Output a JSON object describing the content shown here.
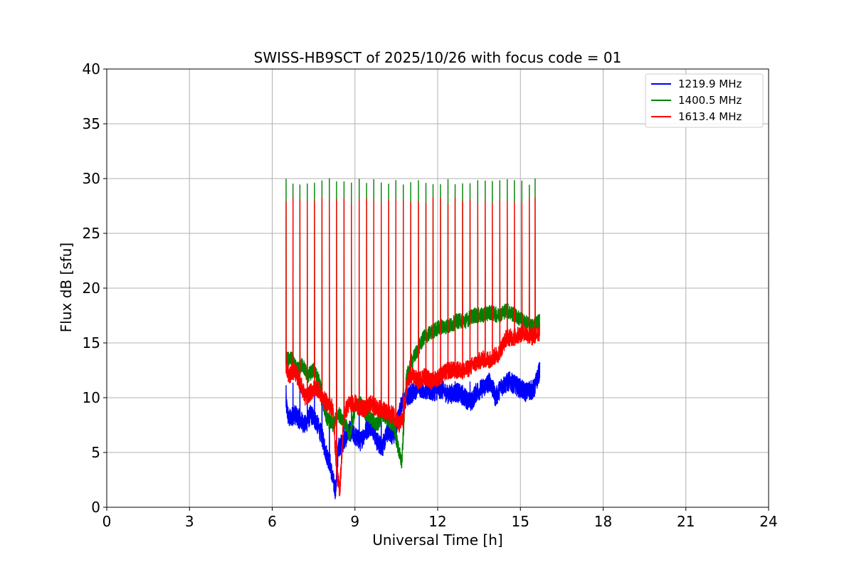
{
  "chart_data": {
    "type": "line",
    "title": "SWISS-HB9SCT of 2025/10/26 with focus code = 01",
    "xlabel": "Universal Time [h]",
    "ylabel": "Flux dB [sfu]",
    "xlim": [
      0,
      24
    ],
    "ylim": [
      0,
      40
    ],
    "xticks": [
      0,
      3,
      6,
      9,
      12,
      15,
      18,
      21,
      24
    ],
    "yticks": [
      0,
      5,
      10,
      15,
      20,
      25,
      30,
      35,
      40
    ],
    "grid": true,
    "legend_position": "top-right",
    "spike_times": [
      6.5,
      6.75,
      7.0,
      7.27,
      7.53,
      7.8,
      8.07,
      8.33,
      8.6,
      8.87,
      9.15,
      9.42,
      9.68,
      9.95,
      10.22,
      10.48,
      10.75,
      11.02,
      11.3,
      11.57,
      11.83,
      12.1,
      12.37,
      12.63,
      12.9,
      13.17,
      13.45,
      13.72,
      13.98,
      14.25,
      14.52,
      14.78,
      15.05,
      15.32,
      15.53
    ],
    "series": [
      {
        "name": "1219.9 MHz",
        "color": "#0000ff",
        "spike_peak": 11.5,
        "x": [
          6.5,
          6.6,
          6.8,
          7.0,
          7.2,
          7.4,
          7.6,
          7.8,
          7.95,
          8.1,
          8.2,
          8.3,
          8.4,
          8.6,
          8.8,
          9.0,
          9.2,
          9.4,
          9.6,
          9.8,
          10.0,
          10.2,
          10.4,
          10.6,
          10.7,
          10.9,
          11.1,
          11.3,
          11.5,
          11.8,
          12.1,
          12.4,
          12.7,
          13.0,
          13.2,
          13.4,
          13.7,
          13.9,
          14.1,
          14.3,
          14.6,
          14.9,
          15.2,
          15.5,
          15.7
        ],
        "y": [
          9.5,
          8.0,
          8.5,
          8.0,
          7.5,
          8.5,
          7.8,
          6.5,
          5.0,
          4.0,
          2.5,
          1.5,
          5.5,
          6.0,
          7.0,
          6.5,
          6.0,
          7.0,
          7.5,
          6.0,
          5.5,
          7.0,
          6.5,
          8.5,
          9.5,
          10.0,
          10.5,
          11.0,
          10.8,
          10.5,
          10.8,
          10.3,
          10.5,
          10.0,
          9.5,
          10.5,
          11.0,
          11.5,
          10.0,
          11.0,
          11.5,
          11.0,
          10.5,
          10.8,
          12.5
        ],
        "noise": 0.9
      },
      {
        "name": "1400.5 MHz",
        "color": "#008000",
        "spike_peak": 30.0,
        "x": [
          6.5,
          6.7,
          6.9,
          7.1,
          7.3,
          7.5,
          7.7,
          7.85,
          8.0,
          8.2,
          8.4,
          8.6,
          8.8,
          9.0,
          9.2,
          9.4,
          9.6,
          9.8,
          10.0,
          10.2,
          10.4,
          10.6,
          10.7,
          10.85,
          11.0,
          11.2,
          11.5,
          11.8,
          12.1,
          12.4,
          12.7,
          13.0,
          13.3,
          13.6,
          13.9,
          14.2,
          14.5,
          14.8,
          15.1,
          15.4,
          15.7
        ],
        "y": [
          13.5,
          13.5,
          12.5,
          13.0,
          12.0,
          12.5,
          11.5,
          9.5,
          8.0,
          7.5,
          8.5,
          8.0,
          6.5,
          9.0,
          9.5,
          8.5,
          8.0,
          7.5,
          8.5,
          8.0,
          7.5,
          5.0,
          4.0,
          11.5,
          13.0,
          14.0,
          15.5,
          16.0,
          16.5,
          16.5,
          17.0,
          17.0,
          17.5,
          17.5,
          17.8,
          17.5,
          18.0,
          17.5,
          17.0,
          16.5,
          17.0
        ],
        "noise": 0.7
      },
      {
        "name": "1613.4 MHz",
        "color": "#ff0000",
        "spike_peak": 28.3,
        "x": [
          6.5,
          6.6,
          6.8,
          7.0,
          7.2,
          7.4,
          7.6,
          7.8,
          8.0,
          8.2,
          8.35,
          8.45,
          8.6,
          8.8,
          9.0,
          9.2,
          9.4,
          9.6,
          9.8,
          10.0,
          10.2,
          10.4,
          10.6,
          10.75,
          10.9,
          11.1,
          11.3,
          11.5,
          11.8,
          12.1,
          12.4,
          12.7,
          13.0,
          13.3,
          13.6,
          13.9,
          14.2,
          14.5,
          14.8,
          15.1,
          15.4,
          15.7
        ],
        "y": [
          13.0,
          12.0,
          12.5,
          11.5,
          10.0,
          10.5,
          11.0,
          10.0,
          9.5,
          9.0,
          3.0,
          1.5,
          8.5,
          9.5,
          9.5,
          9.0,
          9.0,
          9.5,
          9.0,
          9.0,
          8.5,
          8.5,
          7.5,
          8.0,
          11.5,
          12.0,
          11.5,
          12.0,
          11.5,
          12.0,
          12.5,
          12.5,
          12.5,
          13.0,
          13.5,
          13.5,
          14.0,
          15.5,
          15.5,
          16.0,
          15.5,
          16.0
        ],
        "noise": 0.8
      }
    ]
  }
}
